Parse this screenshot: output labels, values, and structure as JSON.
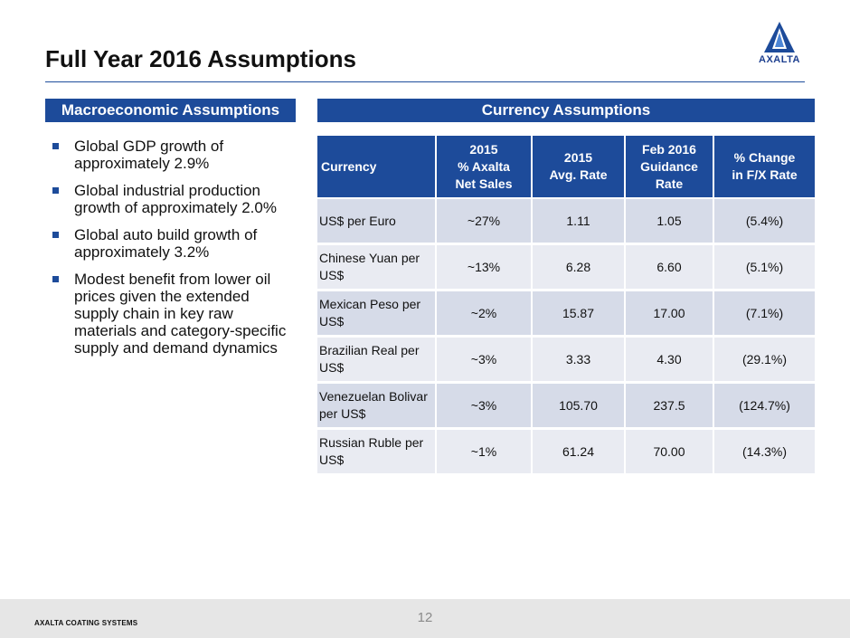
{
  "slide": {
    "title": "Full Year 2016 Assumptions",
    "logo_text": "AXALTA",
    "footer_text": "AXALTA COATING SYSTEMS",
    "page_number": "12"
  },
  "colors": {
    "brand_blue": "#1d4b9a",
    "row_dark": "#d6dbe8",
    "row_light": "#e9ebf2",
    "footer_bg": "#e6e6e6"
  },
  "macro": {
    "header": "Macroeconomic Assumptions",
    "bullets": [
      "Global GDP growth of approximately 2.9%",
      "Global industrial production growth of approximately 2.0%",
      "Global auto build growth of approximately 3.2%",
      "Modest benefit from lower oil prices given the extended supply chain in key raw materials and category-specific supply and demand dynamics"
    ]
  },
  "currency": {
    "header": "Currency Assumptions",
    "columns": [
      "Currency",
      "2015\n% Axalta\nNet Sales",
      "2015\nAvg. Rate",
      "Feb 2016\nGuidance\nRate",
      "% Change\nin F/X Rate"
    ],
    "rows": [
      [
        "US$ per Euro",
        "~27%",
        "1.11",
        "1.05",
        "(5.4%)"
      ],
      [
        "Chinese Yuan per US$",
        "~13%",
        "6.28",
        "6.60",
        "(5.1%)"
      ],
      [
        "Mexican Peso per US$",
        "~2%",
        "15.87",
        "17.00",
        "(7.1%)"
      ],
      [
        "Brazilian Real per US$",
        "~3%",
        "3.33",
        "4.30",
        "(29.1%)"
      ],
      [
        "Venezuelan Bolivar per US$",
        "~3%",
        "105.70",
        "237.5",
        "(124.7%)"
      ],
      [
        "Russian Ruble per US$",
        "~1%",
        "61.24",
        "70.00",
        "(14.3%)"
      ]
    ]
  }
}
